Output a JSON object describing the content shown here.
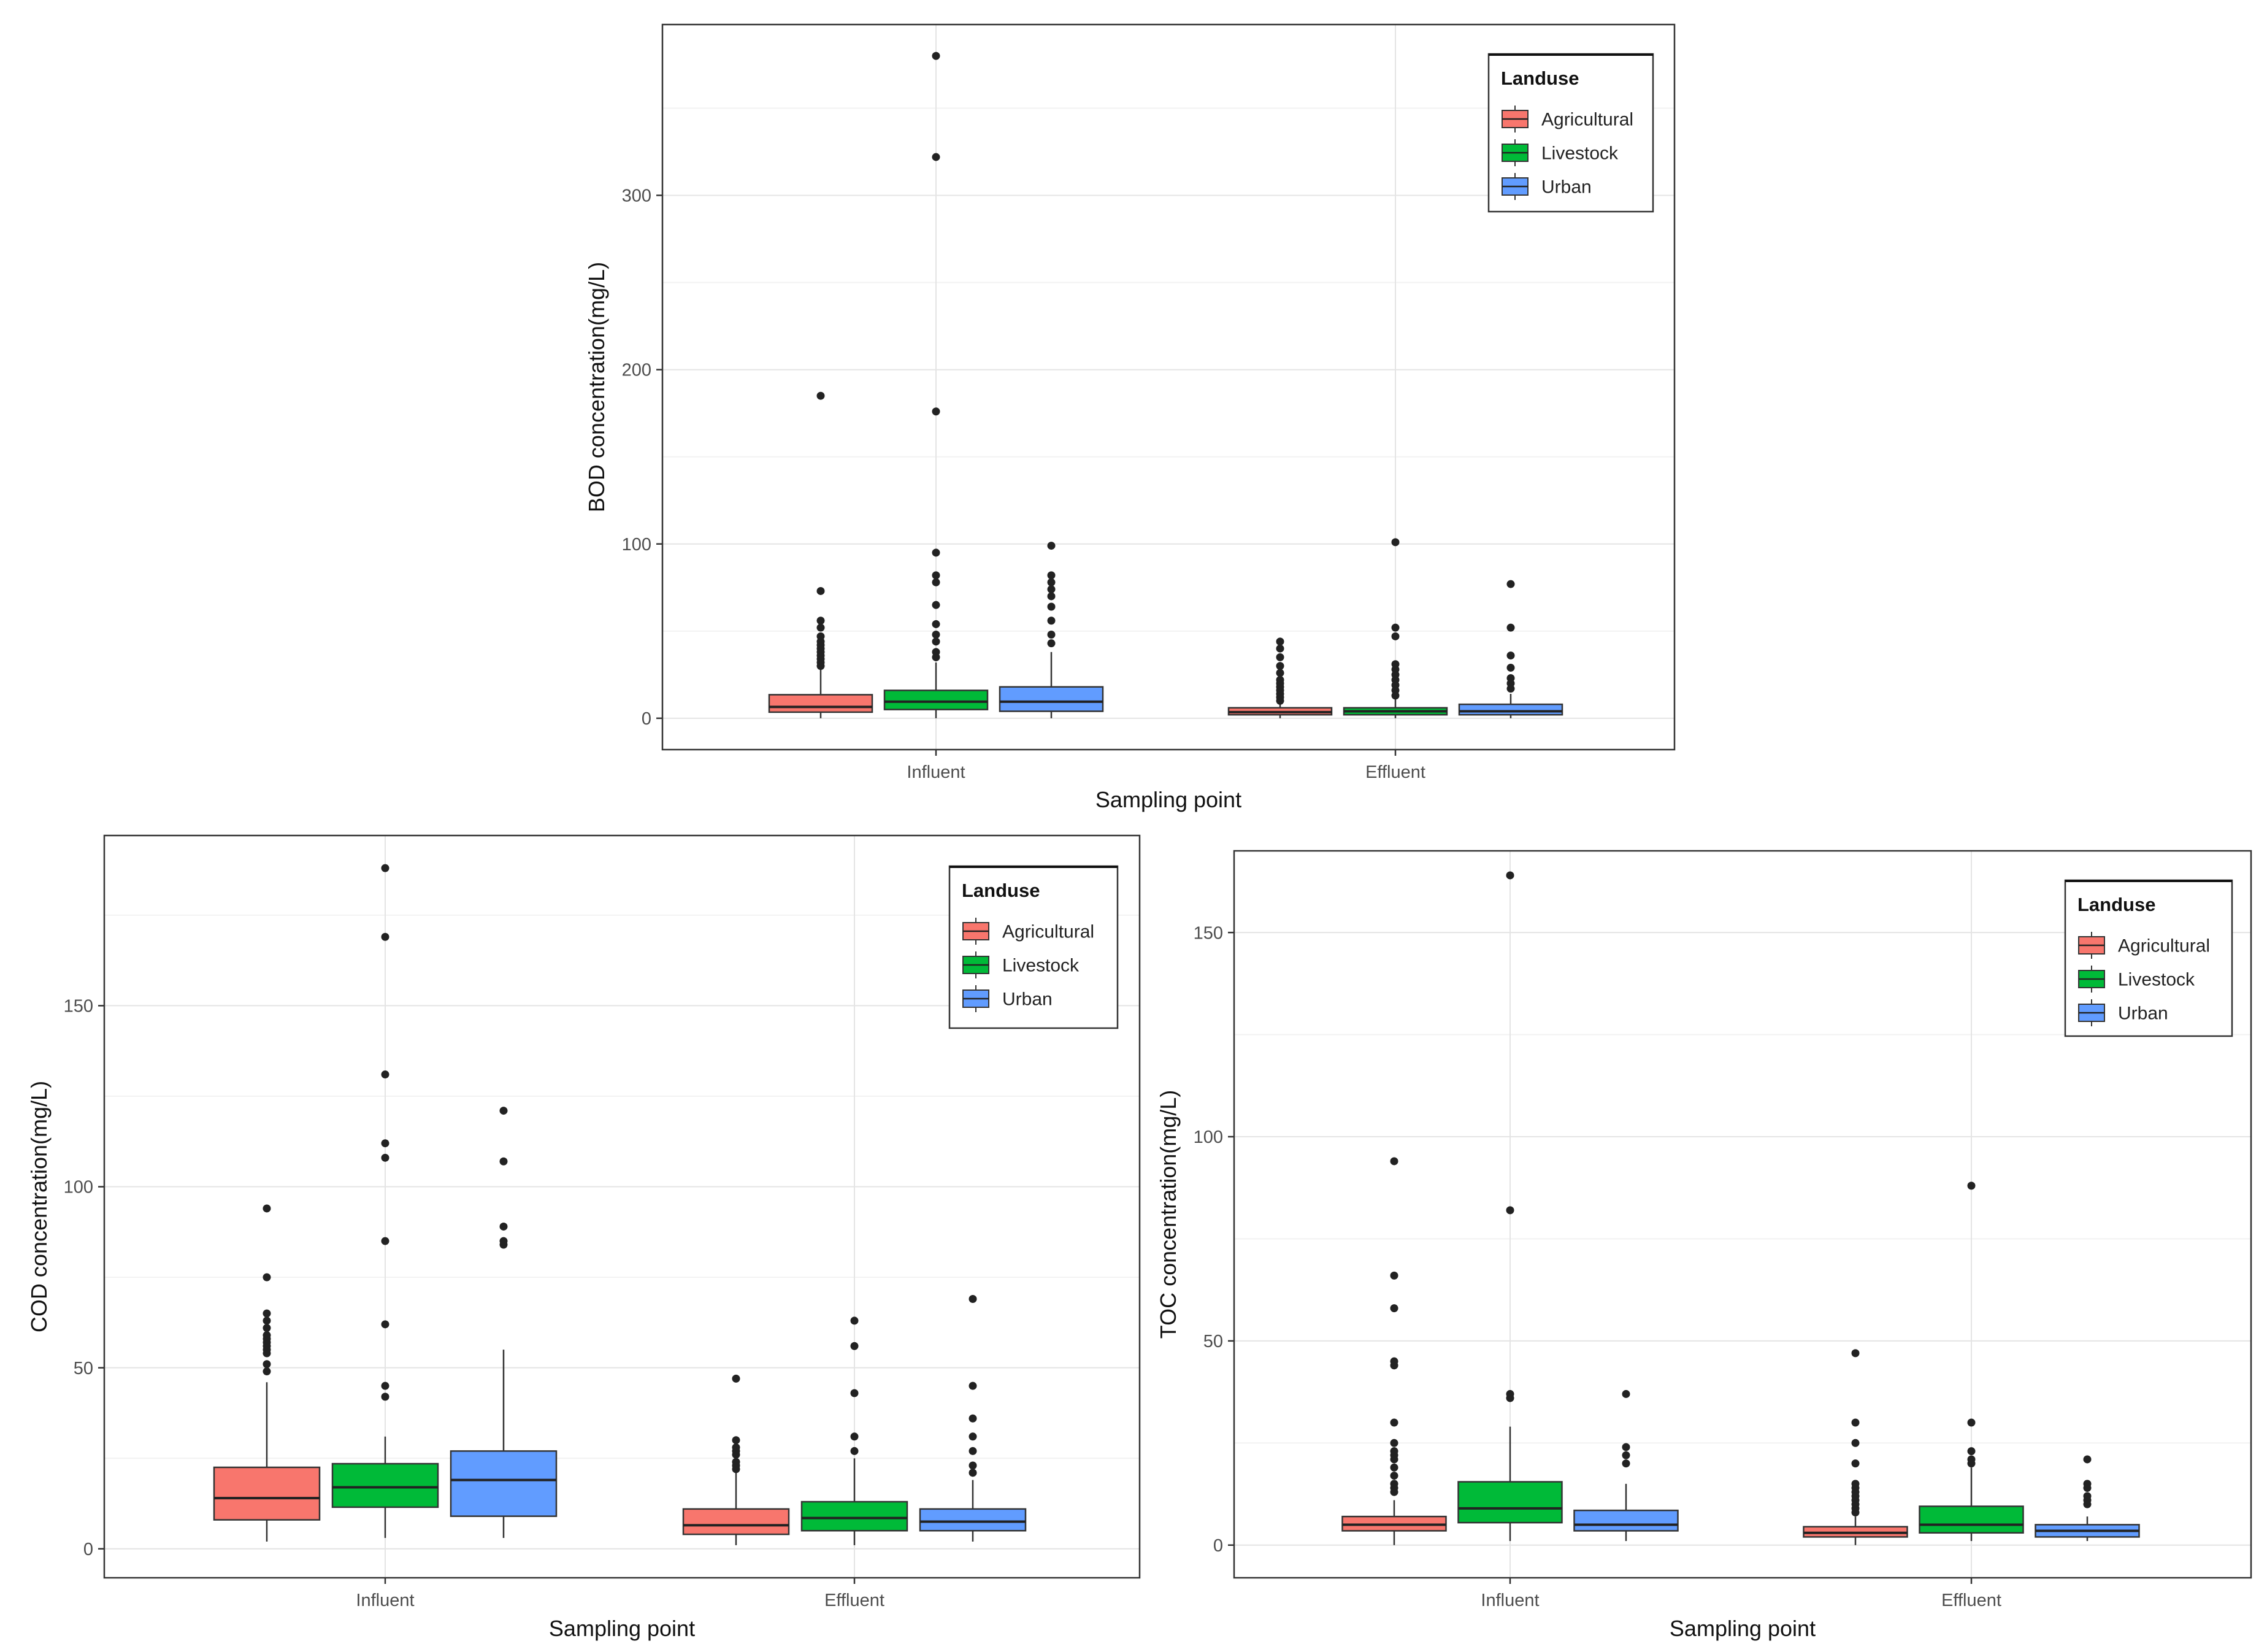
{
  "chart_data": [
    {
      "type": "boxplot",
      "panel": "top",
      "xlabel": "Sampling point",
      "ylabel": "BOD concentration(mg/L)",
      "ylim": [
        -18,
        398
      ],
      "yticks": [
        0,
        100,
        200,
        300
      ],
      "categories": [
        "Influent",
        "Effluent"
      ],
      "grid": true,
      "legend": {
        "title": "Landuse",
        "position": "top-right",
        "items": [
          "Agricultural",
          "Livestock",
          "Urban"
        ]
      },
      "series": [
        {
          "name": "Agricultural",
          "color": "#F8766D",
          "boxes": [
            {
              "category": "Influent",
              "lower_whisker": 0,
              "q1": 3.5,
              "median": 6.5,
              "q3": 13.5,
              "upper_whisker": 28,
              "outliers": [
                30,
                32,
                34,
                36,
                38,
                40,
                42,
                44,
                47,
                52,
                56,
                73,
                185
              ]
            },
            {
              "category": "Effluent",
              "lower_whisker": 0,
              "q1": 2,
              "median": 3.5,
              "q3": 6,
              "upper_whisker": 9,
              "outliers": [
                10,
                12,
                14,
                16,
                18,
                20,
                22,
                26,
                30,
                35,
                40,
                44
              ]
            }
          ]
        },
        {
          "name": "Livestock",
          "color": "#00BA38",
          "boxes": [
            {
              "category": "Influent",
              "lower_whisker": 0,
              "q1": 5,
              "median": 9.5,
              "q3": 16,
              "upper_whisker": 32,
              "outliers": [
                35,
                38,
                44,
                48,
                54,
                65,
                78,
                82,
                95,
                176,
                322,
                380
              ]
            },
            {
              "category": "Effluent",
              "lower_whisker": 0,
              "q1": 2,
              "median": 4,
              "q3": 6,
              "upper_whisker": 11,
              "outliers": [
                13,
                16,
                19,
                22,
                25,
                28,
                31,
                47,
                52,
                101
              ]
            }
          ]
        },
        {
          "name": "Urban",
          "color": "#619CFF",
          "boxes": [
            {
              "category": "Influent",
              "lower_whisker": 0,
              "q1": 4,
              "median": 9.5,
              "q3": 18,
              "upper_whisker": 38,
              "outliers": [
                43,
                48,
                56,
                64,
                70,
                74,
                78,
                82,
                99
              ]
            },
            {
              "category": "Effluent",
              "lower_whisker": 0,
              "q1": 2,
              "median": 4,
              "q3": 8,
              "upper_whisker": 14,
              "outliers": [
                17,
                20,
                23,
                29,
                36,
                52,
                77
              ]
            }
          ]
        }
      ]
    },
    {
      "type": "boxplot",
      "panel": "bottom-left",
      "xlabel": "Sampling point",
      "ylabel": "COD concentration(mg/L)",
      "ylim": [
        -8,
        197
      ],
      "yticks": [
        0,
        50,
        100,
        150
      ],
      "categories": [
        "Influent",
        "Effluent"
      ],
      "grid": true,
      "legend": {
        "title": "Landuse",
        "position": "top-right",
        "items": [
          "Agricultural",
          "Livestock",
          "Urban"
        ]
      },
      "series": [
        {
          "name": "Agricultural",
          "color": "#F8766D",
          "boxes": [
            {
              "category": "Influent",
              "lower_whisker": 2,
              "q1": 8,
              "median": 14,
              "q3": 22.5,
              "upper_whisker": 46,
              "outliers": [
                49,
                51,
                54,
                55,
                56,
                57,
                58,
                59,
                61,
                63,
                65,
                75,
                94
              ]
            },
            {
              "category": "Effluent",
              "lower_whisker": 1,
              "q1": 4,
              "median": 6.5,
              "q3": 11,
              "upper_whisker": 21,
              "outliers": [
                22,
                23,
                24,
                26,
                27,
                28,
                30,
                47
              ]
            }
          ]
        },
        {
          "name": "Livestock",
          "color": "#00BA38",
          "boxes": [
            {
              "category": "Influent",
              "lower_whisker": 3,
              "q1": 11.5,
              "median": 17,
              "q3": 23.5,
              "upper_whisker": 31,
              "outliers": [
                42,
                45,
                62,
                85,
                108,
                112,
                131,
                169,
                188
              ]
            },
            {
              "category": "Effluent",
              "lower_whisker": 1,
              "q1": 5,
              "median": 8.5,
              "q3": 13,
              "upper_whisker": 25,
              "outliers": [
                27,
                31,
                43,
                56,
                63
              ]
            }
          ]
        },
        {
          "name": "Urban",
          "color": "#619CFF",
          "boxes": [
            {
              "category": "Influent",
              "lower_whisker": 3,
              "q1": 9,
              "median": 19,
              "q3": 27,
              "upper_whisker": 55,
              "outliers": [
                84,
                85,
                89,
                107,
                121
              ]
            },
            {
              "category": "Effluent",
              "lower_whisker": 2,
              "q1": 5,
              "median": 7.5,
              "q3": 11,
              "upper_whisker": 19,
              "outliers": [
                21,
                23,
                27,
                31,
                36,
                45,
                69
              ]
            }
          ]
        }
      ]
    },
    {
      "type": "boxplot",
      "panel": "bottom-right",
      "xlabel": "Sampling point",
      "ylabel": "TOC concentration(mg/L)",
      "ylim": [
        -8,
        170
      ],
      "yticks": [
        0,
        50,
        100,
        150
      ],
      "categories": [
        "Influent",
        "Effluent"
      ],
      "grid": true,
      "legend": {
        "title": "Landuse",
        "position": "top-right",
        "items": [
          "Agricultural",
          "Livestock",
          "Urban"
        ]
      },
      "series": [
        {
          "name": "Agricultural",
          "color": "#F8766D",
          "boxes": [
            {
              "category": "Influent",
              "lower_whisker": 0,
              "q1": 3.5,
              "median": 5,
              "q3": 7,
              "upper_whisker": 11,
              "outliers": [
                13,
                14,
                15,
                17,
                19,
                21,
                22,
                23,
                25,
                30,
                44,
                45,
                58,
                66,
                94
              ]
            },
            {
              "category": "Effluent",
              "lower_whisker": 0,
              "q1": 2,
              "median": 3,
              "q3": 4.5,
              "upper_whisker": 7,
              "outliers": [
                8,
                9,
                10,
                11,
                12,
                13,
                14,
                15,
                20,
                25,
                30,
                47
              ]
            }
          ]
        },
        {
          "name": "Livestock",
          "color": "#00BA38",
          "boxes": [
            {
              "category": "Influent",
              "lower_whisker": 1,
              "q1": 5.5,
              "median": 9,
              "q3": 15.5,
              "upper_whisker": 29,
              "outliers": [
                36,
                37,
                82,
                164
              ]
            },
            {
              "category": "Effluent",
              "lower_whisker": 1,
              "q1": 3,
              "median": 5,
              "q3": 9.5,
              "upper_whisker": 19,
              "outliers": [
                20,
                21,
                23,
                30,
                88
              ]
            }
          ]
        },
        {
          "name": "Urban",
          "color": "#619CFF",
          "boxes": [
            {
              "category": "Influent",
              "lower_whisker": 1,
              "q1": 3.5,
              "median": 5,
              "q3": 8.5,
              "upper_whisker": 15,
              "outliers": [
                20,
                22,
                24,
                37
              ]
            },
            {
              "category": "Effluent",
              "lower_whisker": 1,
              "q1": 2,
              "median": 3.5,
              "q3": 5,
              "upper_whisker": 7,
              "outliers": [
                10,
                11,
                12,
                14,
                15,
                21
              ]
            }
          ]
        }
      ]
    }
  ]
}
